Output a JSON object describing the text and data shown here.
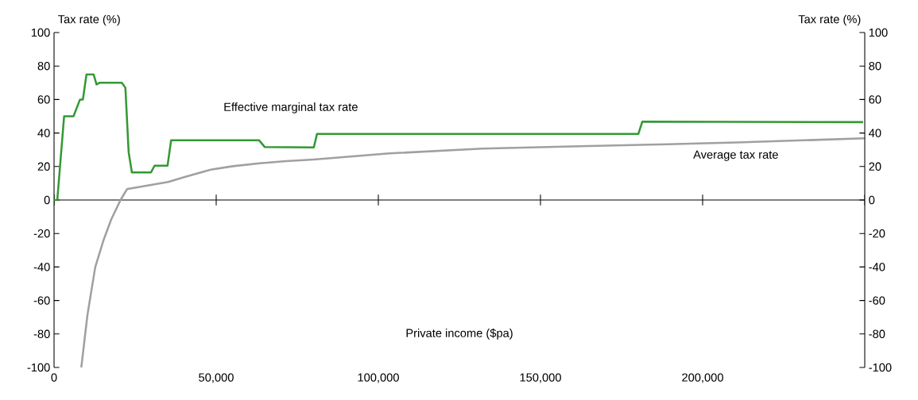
{
  "chart_data": {
    "type": "line",
    "xlabel": "Private income ($pa)",
    "ylabel": "Tax rate (%)",
    "y2label": "Tax rate (%)",
    "xlim": [
      0,
      250000
    ],
    "xticks": [
      0,
      {
        "value": 50000,
        "label": "50,000"
      },
      {
        "value": 100000,
        "label": "100,000"
      },
      {
        "value": 150000,
        "label": "150,000"
      },
      {
        "value": 200000,
        "label": "200,000"
      },
      {
        "value": 250000,
        "label": null
      }
    ],
    "ylim": [
      -100,
      100
    ],
    "yticks": [
      -100,
      -80,
      -60,
      -40,
      -20,
      0,
      20,
      40,
      60,
      80,
      100
    ],
    "y2lim": [
      -100,
      100
    ],
    "y2ticks": [
      -100,
      -80,
      -60,
      -40,
      -20,
      0,
      20,
      40,
      60,
      80,
      100
    ],
    "marker": "none",
    "line_style": "solid",
    "series": [
      {
        "color": "#339933",
        "x": [
          0,
          1000,
          3100,
          6000,
          8000,
          8900,
          10000,
          12200,
          13100,
          14000,
          20900,
          22000,
          23000,
          24000,
          29900,
          31000,
          35000,
          36100,
          63200,
          65000,
          80100,
          81100,
          180200,
          181400,
          249500
        ],
        "values": [
          0,
          0,
          50,
          50,
          60,
          60,
          75,
          75,
          69,
          70,
          70,
          67,
          28.6,
          16.5,
          16.5,
          20.5,
          20.5,
          35.7,
          35.7,
          31.6,
          31.4,
          39.5,
          39.5,
          46.8,
          46.5
        ]
      },
      {
        "color": "#a0a0a0",
        "x": [
          8400,
          10300,
          12700,
          15200,
          17600,
          20500,
          22500,
          35200,
          40500,
          48700,
          55200,
          63400,
          71600,
          80100,
          103400,
          132000,
          164700,
          189200,
          210400,
          250000
        ],
        "values": [
          -100,
          -68.6,
          -40.1,
          -24.3,
          -11.7,
          0,
          6.5,
          10.8,
          13.9,
          18.3,
          20.2,
          21.9,
          23.2,
          24.2,
          27.8,
          30.7,
          32.2,
          33.3,
          34.4,
          36.8
        ]
      }
    ],
    "annotations": [
      "Effective marginal tax rate",
      "Average tax rate"
    ]
  }
}
